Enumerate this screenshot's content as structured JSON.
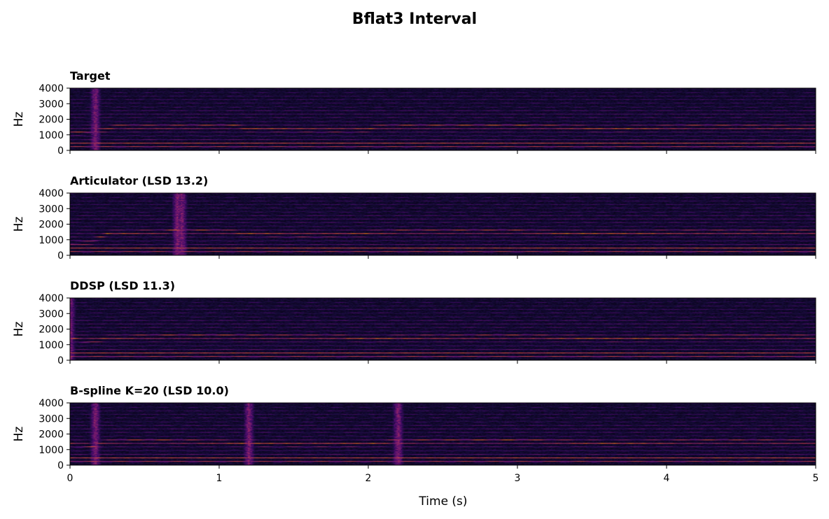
{
  "figure": {
    "title": "Bflat3 Interval"
  },
  "chart_data": {
    "type": "heatmap",
    "subtype": "spectrogram",
    "colormap": "inferno",
    "title": "Bflat3 Interval",
    "shared_x": true,
    "xlabel": "Time (s)",
    "xlim": [
      0,
      5
    ],
    "xticks": [
      "0",
      "1",
      "2",
      "3",
      "4",
      "5"
    ],
    "ylabel": "Hz",
    "ylim": [
      0,
      4000
    ],
    "yticks": [
      "0",
      "1000",
      "2000",
      "3000",
      "4000"
    ],
    "fundamental_hz": 233,
    "panels": [
      {
        "title": "Target",
        "formant_band_hz": [
          [
            0.0,
            1100
          ],
          [
            0.18,
            1200
          ],
          [
            0.3,
            1550
          ],
          [
            0.6,
            1520
          ],
          [
            0.9,
            1560
          ],
          [
            1.1,
            1600
          ],
          [
            1.2,
            1380
          ],
          [
            1.5,
            1350
          ],
          [
            1.8,
            1300
          ],
          [
            2.0,
            1350
          ],
          [
            2.1,
            1550
          ],
          [
            2.5,
            1580
          ],
          [
            3.0,
            1600
          ],
          [
            3.3,
            1520
          ],
          [
            3.6,
            1350
          ],
          [
            3.9,
            1450
          ],
          [
            4.2,
            1550
          ],
          [
            4.6,
            1520
          ],
          [
            5.0,
            1450
          ]
        ],
        "bursts_s": [
          0.17
        ]
      },
      {
        "title": "Articulator (LSD 13.2)",
        "formant_band_hz": [
          [
            0.0,
            700
          ],
          [
            0.15,
            900
          ],
          [
            0.25,
            1400
          ],
          [
            0.6,
            1500
          ],
          [
            0.7,
            1600
          ],
          [
            1.0,
            1550
          ],
          [
            1.2,
            1400
          ],
          [
            1.6,
            1300
          ],
          [
            2.0,
            1400
          ],
          [
            2.2,
            1550
          ],
          [
            3.0,
            1560
          ],
          [
            3.3,
            1400
          ],
          [
            3.8,
            1420
          ],
          [
            4.2,
            1500
          ],
          [
            5.0,
            1500
          ]
        ],
        "bursts_s": [
          0.72,
          0.75
        ]
      },
      {
        "title": "DDSP (LSD 11.3)",
        "formant_band_hz": [
          [
            0.0,
            1500
          ],
          [
            0.1,
            1200
          ],
          [
            0.3,
            1450
          ],
          [
            0.6,
            1560
          ],
          [
            1.0,
            1580
          ],
          [
            1.2,
            1550
          ],
          [
            1.5,
            1520
          ],
          [
            1.8,
            1500
          ],
          [
            2.0,
            1350
          ],
          [
            2.2,
            1450
          ],
          [
            2.5,
            1500
          ],
          [
            3.0,
            1550
          ],
          [
            3.3,
            1450
          ],
          [
            3.7,
            1350
          ],
          [
            4.0,
            1450
          ],
          [
            4.3,
            1550
          ],
          [
            5.0,
            1500
          ]
        ],
        "bursts_s": [
          0.0
        ]
      },
      {
        "title": "B-spline K=20 (LSD 10.0)",
        "formant_band_hz": [
          [
            0.0,
            1350
          ],
          [
            0.15,
            1200
          ],
          [
            0.3,
            1550
          ],
          [
            0.6,
            1580
          ],
          [
            0.9,
            1500
          ],
          [
            1.2,
            1400
          ],
          [
            1.6,
            1330
          ],
          [
            2.0,
            1380
          ],
          [
            2.15,
            1500
          ],
          [
            2.3,
            1550
          ],
          [
            3.0,
            1600
          ],
          [
            3.3,
            1500
          ],
          [
            3.6,
            1400
          ],
          [
            3.9,
            1450
          ],
          [
            4.2,
            1550
          ],
          [
            5.0,
            1500
          ]
        ],
        "bursts_s": [
          0.17,
          1.2,
          2.2
        ]
      }
    ]
  }
}
